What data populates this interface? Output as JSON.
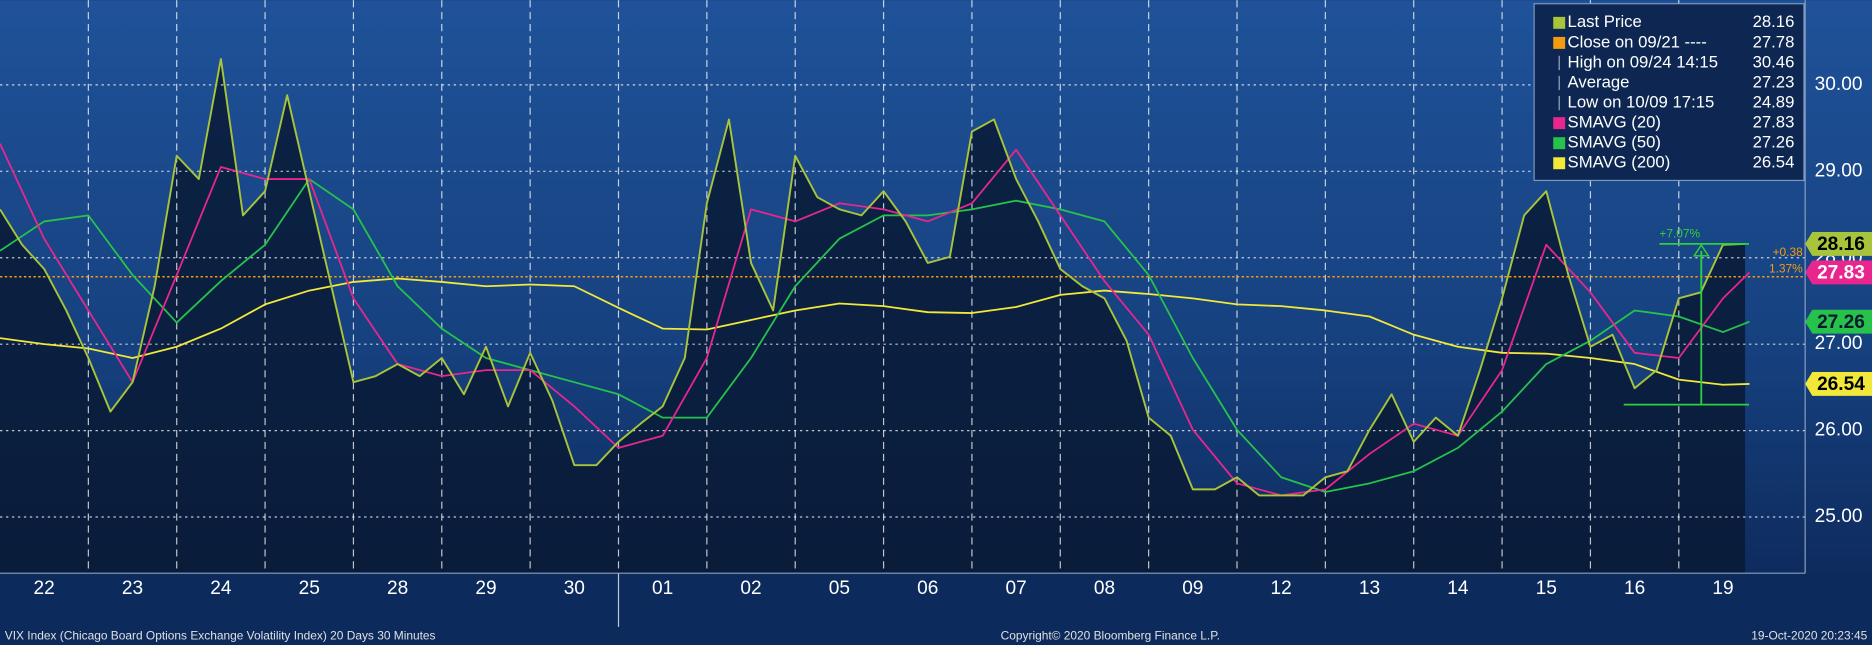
{
  "chart_data": {
    "type": "line",
    "categories": [
      "22",
      "23",
      "24",
      "25",
      "28",
      "29",
      "30",
      "01",
      "02",
      "05",
      "06",
      "07",
      "08",
      "09",
      "12",
      "13",
      "14",
      "15",
      "16",
      "19"
    ],
    "xlim": [
      0,
      20.43
    ],
    "ylim": [
      24.35,
      30.98
    ],
    "yticks": [
      {
        "value": 25,
        "label": "25.00"
      },
      {
        "value": 26,
        "label": "26.00"
      },
      {
        "value": 27,
        "label": "27.00"
      },
      {
        "value": 28,
        "label": "28.00"
      },
      {
        "value": 29,
        "label": "29.00"
      },
      {
        "value": 30,
        "label": "30.00"
      }
    ],
    "grid": true,
    "legend": "top-right",
    "series": [
      {
        "name": "Last Price",
        "color": "#a8c43a",
        "x": [
          0,
          0.25,
          0.5,
          0.75,
          1,
          1.25,
          1.5,
          1.75,
          2,
          2.25,
          2.5,
          2.75,
          3,
          3.25,
          3.5,
          3.75,
          4,
          4.25,
          4.5,
          4.75,
          5,
          5.25,
          5.5,
          5.75,
          6,
          6.25,
          6.5,
          6.75,
          7,
          7.25,
          7.5,
          7.75,
          8,
          8.25,
          8.5,
          8.75,
          9,
          9.25,
          9.5,
          9.75,
          10,
          10.25,
          10.5,
          10.75,
          11,
          11.25,
          11.5,
          11.75,
          12,
          12.25,
          12.5,
          12.75,
          13,
          13.25,
          13.5,
          13.75,
          14,
          14.25,
          14.5,
          14.75,
          15,
          15.25,
          15.5,
          15.75,
          16,
          16.25,
          16.5,
          16.75,
          17,
          17.25,
          17.5,
          17.75,
          18,
          18.25,
          18.5,
          18.75,
          19,
          19.25,
          19.5,
          19.75
        ],
        "values": [
          28.56,
          28.15,
          27.87,
          27.39,
          26.84,
          26.22,
          26.56,
          27.67,
          29.18,
          28.91,
          30.3,
          28.49,
          28.77,
          29.88,
          28.77,
          27.67,
          26.56,
          26.63,
          26.77,
          26.63,
          26.84,
          26.42,
          26.97,
          26.28,
          26.9,
          26.35,
          25.6,
          25.6,
          25.87,
          26.08,
          26.28,
          26.84,
          28.63,
          29.6,
          27.94,
          27.39,
          29.18,
          28.7,
          28.56,
          28.49,
          28.77,
          28.42,
          27.94,
          28.01,
          29.46,
          29.6,
          28.91,
          28.42,
          27.87,
          27.67,
          27.53,
          27.04,
          26.15,
          25.94,
          25.32,
          25.32,
          25.46,
          25.25,
          25.25,
          25.25,
          25.46,
          25.53,
          26.01,
          26.42,
          25.87,
          26.15,
          25.94,
          26.7,
          27.53,
          28.49,
          28.77,
          27.8,
          26.97,
          27.11,
          26.49,
          26.7,
          27.53,
          27.6,
          28.15,
          28.16
        ]
      },
      {
        "name": "SMAVG (20)",
        "color": "#e8268e",
        "x": [
          0,
          0.5,
          1,
          1.5,
          2,
          2.5,
          3,
          3.5,
          4,
          4.5,
          5,
          5.5,
          6,
          6.5,
          7,
          7.5,
          8,
          8.5,
          9,
          9.5,
          10,
          10.5,
          11,
          11.5,
          12,
          12.5,
          13,
          13.5,
          14,
          14.5,
          15,
          15.5,
          16,
          16.5,
          17,
          17.5,
          18,
          18.5,
          19,
          19.5,
          19.8
        ],
        "values": [
          29.32,
          28.22,
          27.39,
          26.56,
          27.8,
          29.05,
          28.91,
          28.91,
          27.53,
          26.77,
          26.63,
          26.7,
          26.7,
          26.28,
          25.8,
          25.94,
          26.84,
          28.56,
          28.42,
          28.63,
          28.56,
          28.42,
          28.63,
          29.25,
          28.49,
          27.73,
          27.11,
          26.01,
          25.39,
          25.25,
          25.32,
          25.73,
          26.08,
          25.94,
          26.7,
          28.15,
          27.6,
          26.9,
          26.84,
          27.53,
          27.83
        ]
      },
      {
        "name": "SMAVG (50)",
        "color": "#26c24c",
        "x": [
          0,
          0.5,
          1,
          1.5,
          2,
          2.5,
          3,
          3.5,
          4,
          4.5,
          5,
          5.5,
          6,
          6.5,
          7,
          7.5,
          8,
          8.5,
          9,
          9.5,
          10,
          10.5,
          11,
          11.5,
          12,
          12.5,
          13,
          13.5,
          14,
          14.5,
          15,
          15.5,
          16,
          16.5,
          17,
          17.5,
          18,
          18.5,
          19,
          19.5,
          19.8
        ],
        "values": [
          28.08,
          28.42,
          28.49,
          27.8,
          27.25,
          27.73,
          28.15,
          28.91,
          28.56,
          27.67,
          27.18,
          26.84,
          26.7,
          26.56,
          26.42,
          26.15,
          26.15,
          26.84,
          27.67,
          28.22,
          28.49,
          28.49,
          28.56,
          28.66,
          28.56,
          28.42,
          27.8,
          26.84,
          26.01,
          25.46,
          25.29,
          25.39,
          25.53,
          25.8,
          26.22,
          26.77,
          27.04,
          27.39,
          27.32,
          27.14,
          27.26
        ]
      },
      {
        "name": "SMAVG (200)",
        "color": "#f2e83a",
        "x": [
          0,
          0.5,
          1,
          1.5,
          2,
          2.5,
          3,
          3.5,
          4,
          4.5,
          5,
          5.5,
          6,
          6.5,
          7,
          7.5,
          8,
          8.5,
          9,
          9.5,
          10,
          10.5,
          11,
          11.5,
          12,
          12.5,
          13,
          13.5,
          14,
          14.5,
          15,
          15.5,
          16,
          16.5,
          17,
          17.5,
          18,
          18.5,
          19,
          19.5,
          19.8
        ],
        "values": [
          27.07,
          27.0,
          26.95,
          26.84,
          26.97,
          27.18,
          27.46,
          27.62,
          27.72,
          27.76,
          27.72,
          27.67,
          27.69,
          27.67,
          27.42,
          27.18,
          27.17,
          27.28,
          27.39,
          27.47,
          27.44,
          27.37,
          27.36,
          27.43,
          27.57,
          27.62,
          27.58,
          27.53,
          27.46,
          27.44,
          27.39,
          27.32,
          27.11,
          26.97,
          26.9,
          26.89,
          26.84,
          26.77,
          26.59,
          26.53,
          26.54
        ]
      }
    ],
    "close": {
      "label": "Close on 09/21 ----",
      "value": 27.78,
      "color": "#f39c12"
    },
    "high": {
      "label": "High on 09/24 14:15",
      "value": 30.46
    },
    "average": {
      "label": "Average",
      "value": 27.23
    },
    "low": {
      "label": "Low on 10/09 17:15",
      "value": 24.89
    },
    "change": {
      "low": 26.3,
      "label": "+7.07%"
    },
    "close_change": {
      "labels": [
        "+0.38",
        "1.37%"
      ]
    },
    "footer": {
      "left": "VIX Index (Chicago Board Options Exchange Volatility Index) 20 Days 30 Minutes",
      "center": "Copyright© 2020 Bloomberg Finance L.P.",
      "right": "19-Oct-2020 20:23:45"
    }
  }
}
